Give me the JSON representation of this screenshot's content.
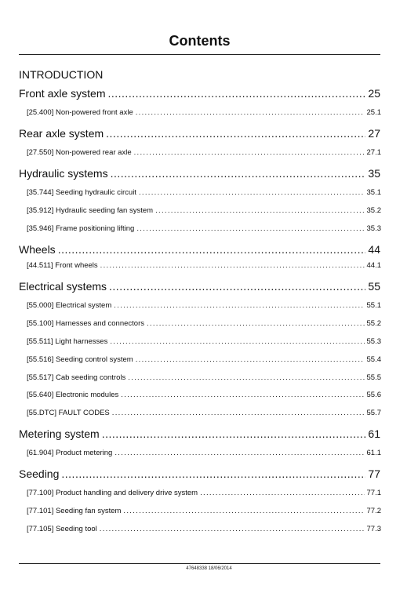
{
  "title": "Contents",
  "intro_heading": "INTRODUCTION",
  "entries": [
    {
      "label": "Front axle system",
      "page": "25"
    },
    {
      "label": "[25.400] Non-powered front axle",
      "page": "25.1"
    },
    {
      "label": "Rear axle system",
      "page": "27"
    },
    {
      "label": "[27.550] Non-powered rear axle",
      "page": "27.1"
    },
    {
      "label": "Hydraulic systems",
      "page": "35"
    },
    {
      "label": "[35.744] Seeding hydraulic circuit",
      "page": "35.1"
    },
    {
      "label": "[35.912] Hydraulic seeding fan system",
      "page": "35.2"
    },
    {
      "label": "[35.946] Frame positioning lifting",
      "page": "35.3"
    },
    {
      "label": "Wheels",
      "page": "44"
    },
    {
      "label": "[44.511] Front wheels",
      "page": "44.1"
    },
    {
      "label": "Electrical systems",
      "page": "55"
    },
    {
      "label": "[55.000] Electrical system",
      "page": "55.1"
    },
    {
      "label": "[55.100] Harnesses and connectors",
      "page": "55.2"
    },
    {
      "label": "[55.511] Light harnesses",
      "page": "55.3"
    },
    {
      "label": "[55.516] Seeding control system",
      "page": "55.4"
    },
    {
      "label": "[55.517] Cab seeding controls",
      "page": "55.5"
    },
    {
      "label": "[55.640] Electronic modules",
      "page": "55.6"
    },
    {
      "label": "[55.DTC] FAULT CODES",
      "page": "55.7"
    },
    {
      "label": "Metering system",
      "page": "61"
    },
    {
      "label": "[61.904] Product metering",
      "page": "61.1"
    },
    {
      "label": "Seeding",
      "page": "77"
    },
    {
      "label": "[77.100] Product handling and delivery drive system",
      "page": "77.1"
    },
    {
      "label": "[77.101] Seeding fan system",
      "page": "77.2"
    },
    {
      "label": "[77.105] Seeding tool",
      "page": "77.3"
    }
  ],
  "footer": "47648338 18/06/2014"
}
